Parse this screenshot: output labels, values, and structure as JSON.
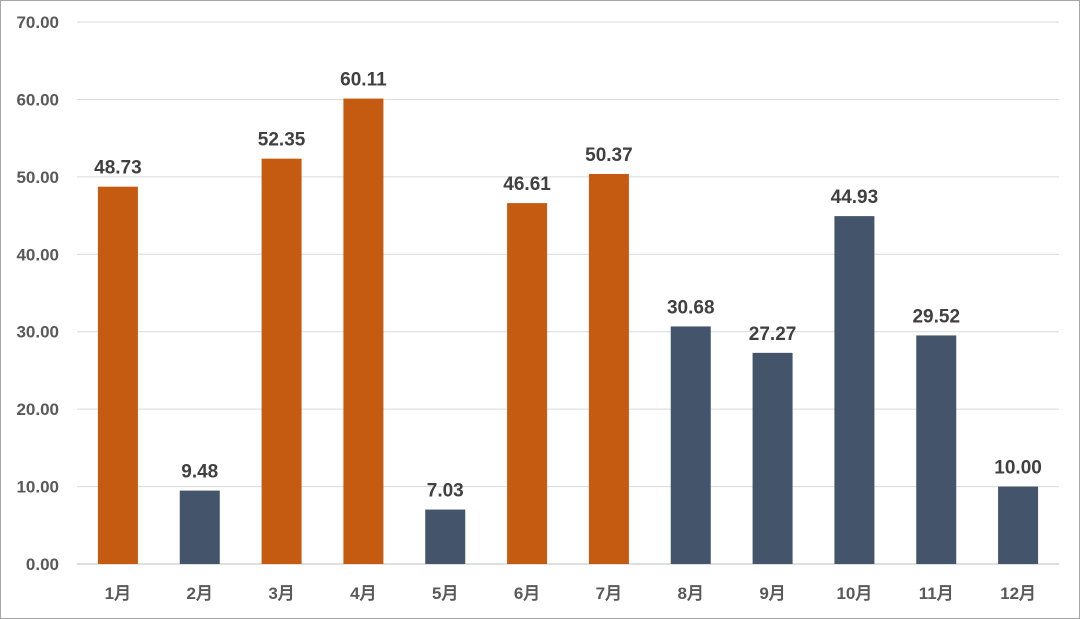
{
  "chart_data": {
    "type": "bar",
    "title": "",
    "xlabel": "",
    "ylabel": "",
    "categories": [
      "1月",
      "2月",
      "3月",
      "4月",
      "5月",
      "6月",
      "7月",
      "8月",
      "9月",
      "10月",
      "11月",
      "12月"
    ],
    "values": [
      48.73,
      9.48,
      52.35,
      60.11,
      7.03,
      46.61,
      50.37,
      30.68,
      27.27,
      44.93,
      29.52,
      10.0
    ],
    "data_labels": [
      "48.73",
      "9.48",
      "52.35",
      "60.11",
      "7.03",
      "46.61",
      "50.37",
      "30.68",
      "27.27",
      "44.93",
      "29.52",
      "10.00"
    ],
    "bar_colors": [
      "#c55a11",
      "#44546a",
      "#c55a11",
      "#c55a11",
      "#44546a",
      "#c55a11",
      "#c55a11",
      "#44546a",
      "#44546a",
      "#44546a",
      "#44546a",
      "#44546a"
    ],
    "ylim": [
      0,
      70
    ],
    "yticks": [
      0,
      10,
      20,
      30,
      40,
      50,
      60,
      70
    ],
    "ytick_labels": [
      "0.00",
      "10.00",
      "20.00",
      "30.00",
      "40.00",
      "50.00",
      "60.00",
      "70.00"
    ],
    "grid": true,
    "legend": "none",
    "colors": {
      "orange": "#c55a11",
      "slate": "#44546a",
      "gridline": "#d9d9d9",
      "axis": "#bfbfbf"
    }
  }
}
